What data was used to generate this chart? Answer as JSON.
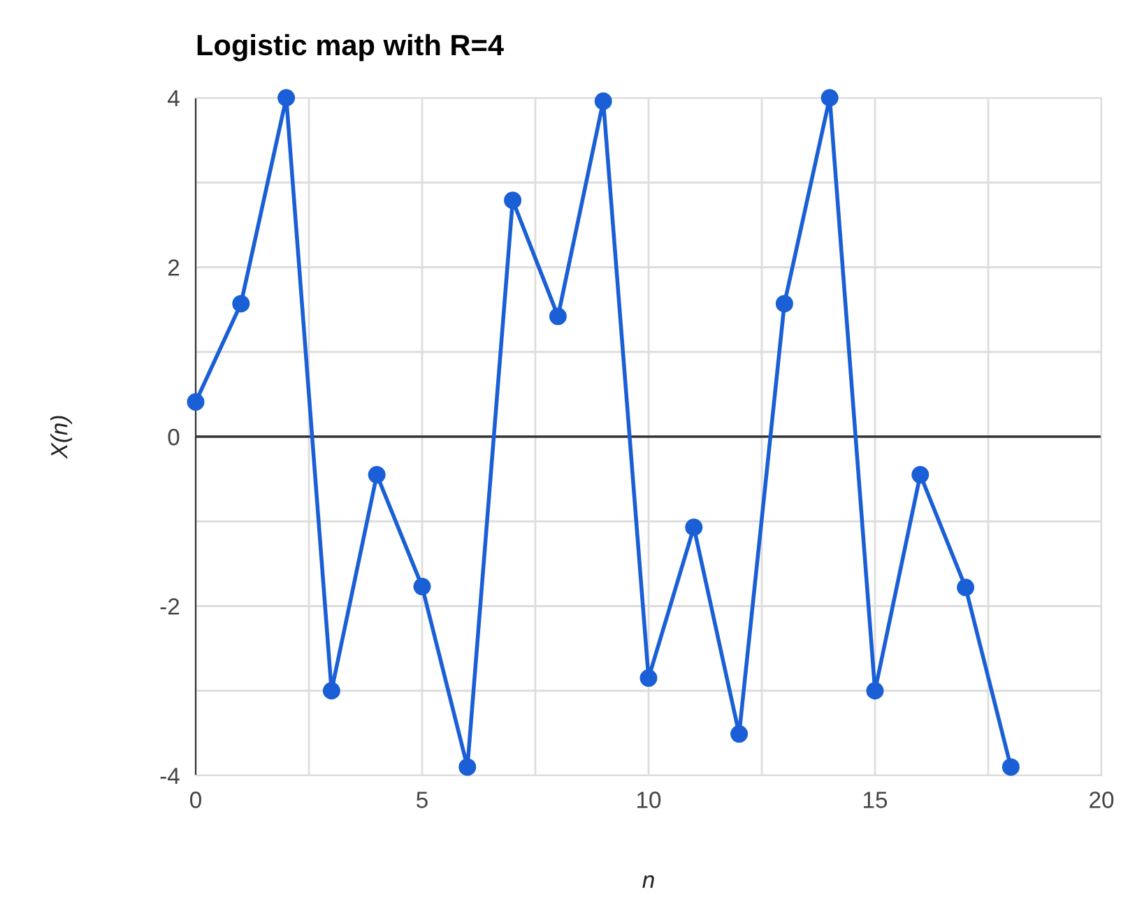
{
  "chart_data": {
    "type": "line",
    "title": "Logistic map with R=4",
    "xlabel": "n",
    "ylabel": "X(n)",
    "x": [
      0,
      1,
      2,
      3,
      4,
      5,
      6,
      7,
      8,
      9,
      10,
      11,
      12,
      13,
      14,
      15,
      16,
      17,
      18
    ],
    "series": [
      {
        "color": "#1a5fd6",
        "values": [
          0.41,
          1.57,
          4.0,
          -3.0,
          -0.45,
          -1.77,
          -3.9,
          2.79,
          1.42,
          3.96,
          -2.85,
          -1.07,
          -3.51,
          1.57,
          4.0,
          -3.0,
          -0.45,
          -1.78,
          -3.9
        ]
      }
    ],
    "xlim": [
      0,
      20
    ],
    "xticks": [
      0,
      {
        "value": 2.5,
        "label": null
      },
      5,
      {
        "value": 7.5,
        "label": null
      },
      10,
      {
        "value": 12.5,
        "label": null
      },
      15,
      {
        "value": 17.5,
        "label": null
      },
      20
    ],
    "ylim": [
      -4,
      4
    ],
    "yticks": [
      -4,
      {
        "value": -3,
        "label": null
      },
      -2,
      {
        "value": -1,
        "label": null
      },
      0,
      {
        "value": 1,
        "label": null
      },
      2,
      {
        "value": 3,
        "label": null
      },
      4
    ],
    "ref_lines": [
      {
        "axis": "y",
        "value": 0,
        "color": "#333333"
      }
    ],
    "grid": true,
    "marker": "circle",
    "line_style": "solid",
    "legend": false
  }
}
